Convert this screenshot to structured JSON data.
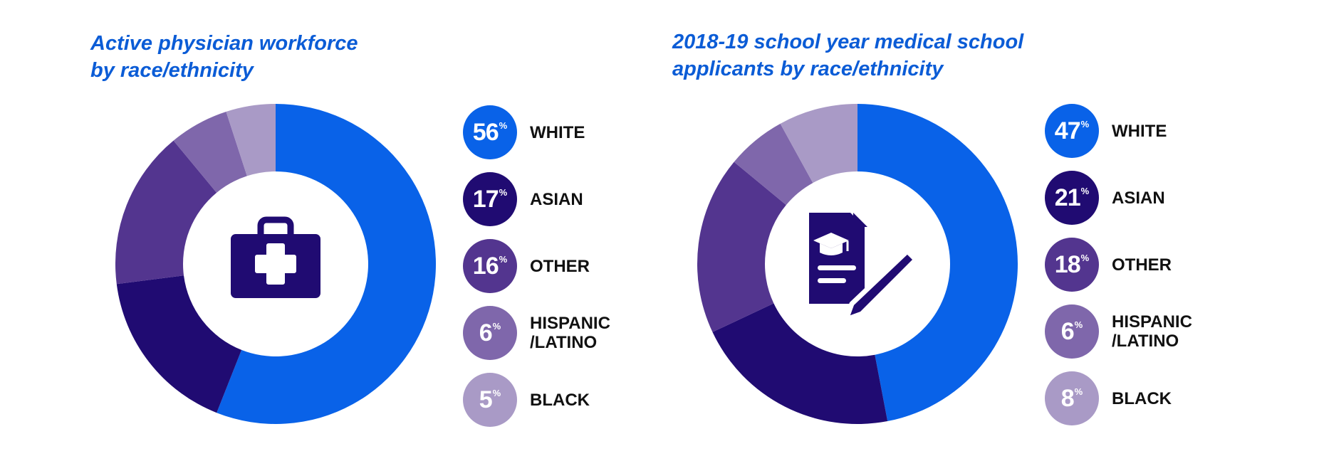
{
  "colors": {
    "title": "#0b5cd6",
    "series": [
      "#0962e8",
      "#200b72",
      "#53358f",
      "#7f67ab",
      "#a99ac6"
    ]
  },
  "chart_data": [
    {
      "type": "pie",
      "title": "Active physician workforce\nby race/ethnicity",
      "icon": "medical-kit-icon",
      "categories": [
        "WHITE",
        "ASIAN",
        "OTHER",
        "HISPANIC\n/LATINO",
        "BLACK"
      ],
      "values": [
        56,
        17,
        16,
        6,
        5
      ],
      "value_labels": [
        "56",
        "17",
        "16",
        "6",
        "5"
      ],
      "unit": "%",
      "legend": "right"
    },
    {
      "type": "pie",
      "title": "2018-19 school year medical school\napplicants by race/ethnicity",
      "icon": "graduation-document-icon",
      "categories": [
        "WHITE",
        "ASIAN",
        "OTHER",
        "HISPANIC\n/LATINO",
        "BLACK"
      ],
      "values": [
        47,
        21,
        18,
        6,
        8
      ],
      "value_labels": [
        "47",
        "21",
        "18",
        "6",
        "8"
      ],
      "unit": "%",
      "legend": "right"
    }
  ]
}
